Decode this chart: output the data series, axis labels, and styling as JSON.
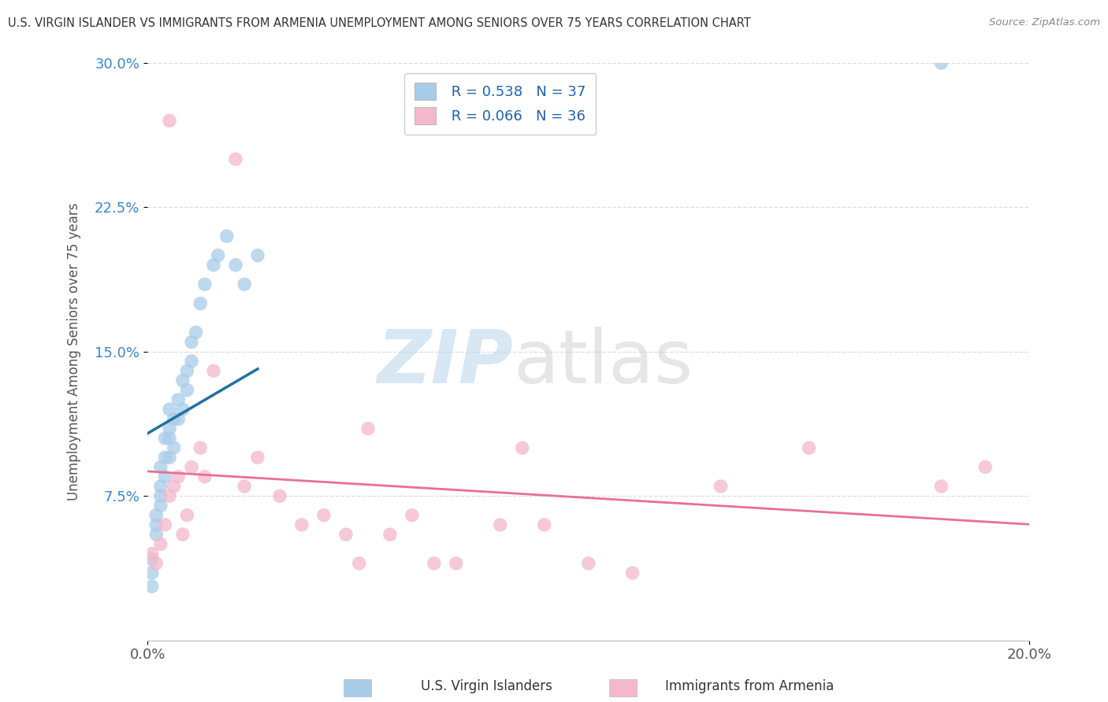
{
  "title": "U.S. VIRGIN ISLANDER VS IMMIGRANTS FROM ARMENIA UNEMPLOYMENT AMONG SENIORS OVER 75 YEARS CORRELATION CHART",
  "source": "Source: ZipAtlas.com",
  "ylabel": "Unemployment Among Seniors over 75 years",
  "xlabel_blue": "U.S. Virgin Islanders",
  "xlabel_pink": "Immigrants from Armenia",
  "xlim": [
    0.0,
    0.2
  ],
  "ylim": [
    0.0,
    0.3
  ],
  "r_blue": 0.538,
  "n_blue": 37,
  "r_pink": 0.066,
  "n_pink": 36,
  "blue_color": "#a8cce8",
  "pink_color": "#f4b8cc",
  "blue_line_color": "#2471a3",
  "pink_line_color": "#e87090",
  "watermark_zip": "ZIP",
  "watermark_atlas": "atlas",
  "blue_scatter_x": [
    0.001,
    0.001,
    0.001,
    0.002,
    0.002,
    0.002,
    0.003,
    0.003,
    0.003,
    0.003,
    0.004,
    0.004,
    0.004,
    0.005,
    0.005,
    0.005,
    0.005,
    0.006,
    0.006,
    0.007,
    0.007,
    0.008,
    0.008,
    0.009,
    0.009,
    0.01,
    0.01,
    0.011,
    0.012,
    0.013,
    0.015,
    0.016,
    0.018,
    0.02,
    0.022,
    0.025,
    0.18
  ],
  "blue_scatter_y": [
    0.028,
    0.035,
    0.042,
    0.055,
    0.06,
    0.065,
    0.07,
    0.075,
    0.08,
    0.09,
    0.085,
    0.095,
    0.105,
    0.095,
    0.105,
    0.11,
    0.12,
    0.1,
    0.115,
    0.115,
    0.125,
    0.12,
    0.135,
    0.13,
    0.14,
    0.145,
    0.155,
    0.16,
    0.175,
    0.185,
    0.195,
    0.2,
    0.21,
    0.195,
    0.185,
    0.2,
    0.3
  ],
  "pink_scatter_x": [
    0.001,
    0.002,
    0.003,
    0.004,
    0.005,
    0.005,
    0.006,
    0.007,
    0.008,
    0.009,
    0.01,
    0.012,
    0.013,
    0.015,
    0.02,
    0.022,
    0.025,
    0.03,
    0.035,
    0.04,
    0.045,
    0.048,
    0.05,
    0.055,
    0.06,
    0.065,
    0.07,
    0.08,
    0.085,
    0.09,
    0.1,
    0.11,
    0.13,
    0.15,
    0.18,
    0.19
  ],
  "pink_scatter_y": [
    0.045,
    0.04,
    0.05,
    0.06,
    0.27,
    0.075,
    0.08,
    0.085,
    0.055,
    0.065,
    0.09,
    0.1,
    0.085,
    0.14,
    0.25,
    0.08,
    0.095,
    0.075,
    0.06,
    0.065,
    0.055,
    0.04,
    0.11,
    0.055,
    0.065,
    0.04,
    0.04,
    0.06,
    0.1,
    0.06,
    0.04,
    0.035,
    0.08,
    0.1,
    0.08,
    0.09
  ],
  "background_color": "#ffffff",
  "grid_color": "#dddddd"
}
